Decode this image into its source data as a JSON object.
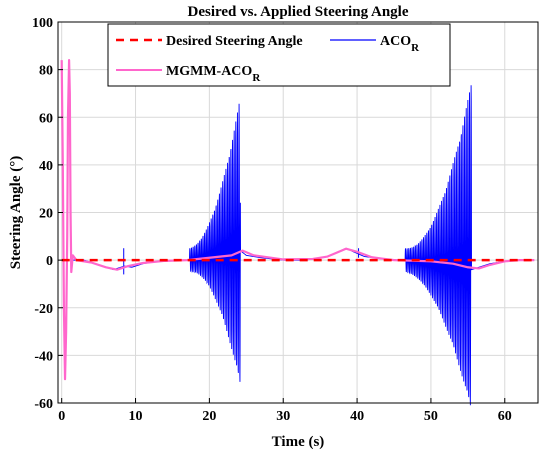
{
  "chart_data": {
    "type": "line",
    "title": "Desired vs. Applied Steering Angle",
    "xlabel": "Time (s)",
    "ylabel": "Steering Angle (°)",
    "xlim": [
      -0.5,
      64.5
    ],
    "ylim": [
      -60,
      100
    ],
    "x_ticks": [
      "0",
      "10",
      "20",
      "30",
      "40",
      "50",
      "60"
    ],
    "y_ticks": [
      "-60",
      "-40",
      "-20",
      "0",
      "20",
      "40",
      "60",
      "80",
      "100"
    ],
    "grid": true,
    "legend": {
      "placement": "top",
      "entries": [
        {
          "key": "desired",
          "label": "Desired Steering Angle",
          "color": "#ff0000",
          "style": "dashed"
        },
        {
          "key": "aco",
          "label": "ACO",
          "subscript": "R",
          "color": "#0000ff",
          "style": "solid"
        },
        {
          "key": "mgmm",
          "label": "MGMM-ACO",
          "subscript": "R",
          "color": "#ff66cc",
          "style": "solid"
        }
      ]
    },
    "series": [
      {
        "name": "Desired Steering Angle",
        "color": "#ff0000",
        "style": "dashed",
        "x": [
          0,
          64
        ],
        "y": [
          0,
          0
        ]
      },
      {
        "name": "ACO_R",
        "color": "#0000ff",
        "style": "solid",
        "envelope_notes": "oscillation bursts",
        "bursts": [
          {
            "x_start": 17.3,
            "x_end": 24.2,
            "amp_start": 5,
            "amp_end": 65,
            "neg_amp_end": -57,
            "freq": 4.5
          },
          {
            "x_start": 46.5,
            "x_end": 55.5,
            "amp_start": 5,
            "amp_end": 79,
            "neg_amp_end": -60,
            "freq": 4.5
          }
        ],
        "baseline": {
          "x": [
            1.5,
            3,
            7,
            8.5,
            9.5,
            11,
            13,
            16,
            17.3,
            24.2,
            25,
            27,
            30,
            33,
            36,
            38.5,
            39.5,
            41,
            44,
            46.5,
            55.5,
            56.5,
            58,
            60,
            62,
            64
          ],
          "y": [
            0,
            0,
            -4,
            -2.5,
            -3,
            -1.5,
            -0.5,
            0,
            0,
            4,
            2,
            1,
            0,
            0,
            1.5,
            5,
            3.5,
            1.5,
            0.3,
            0,
            -4,
            -3,
            -1.5,
            -0.5,
            0,
            0
          ]
        },
        "spikes": [
          {
            "x": 8.4,
            "y_min": -6,
            "y_max": 5
          },
          {
            "x": 40.2,
            "y_min": 1,
            "y_max": 5
          }
        ]
      },
      {
        "name": "MGMM-ACO_R",
        "color": "#ff66cc",
        "style": "solid",
        "x": [
          0,
          0.15,
          0.3,
          0.45,
          0.6,
          0.75,
          0.85,
          1.0,
          1.1,
          1.2,
          1.3,
          1.5,
          2,
          4,
          6,
          7.5,
          9,
          11,
          14,
          17,
          20,
          23,
          24.5,
          26,
          30,
          34,
          36,
          38.5,
          40,
          42,
          45,
          50,
          53,
          55,
          56.5,
          58,
          60,
          62,
          64
        ],
        "y": [
          84,
          40,
          -20,
          -50,
          -30,
          10,
          60,
          84,
          70,
          20,
          -5,
          2,
          0,
          -1,
          -3,
          -4,
          -2.5,
          -1.2,
          -0.3,
          0,
          1,
          2,
          4,
          2,
          0.3,
          0.5,
          1.5,
          4.8,
          3.5,
          1.2,
          0,
          -0.5,
          -1.5,
          -3,
          -3.5,
          -2,
          -0.5,
          0,
          0
        ]
      }
    ]
  }
}
